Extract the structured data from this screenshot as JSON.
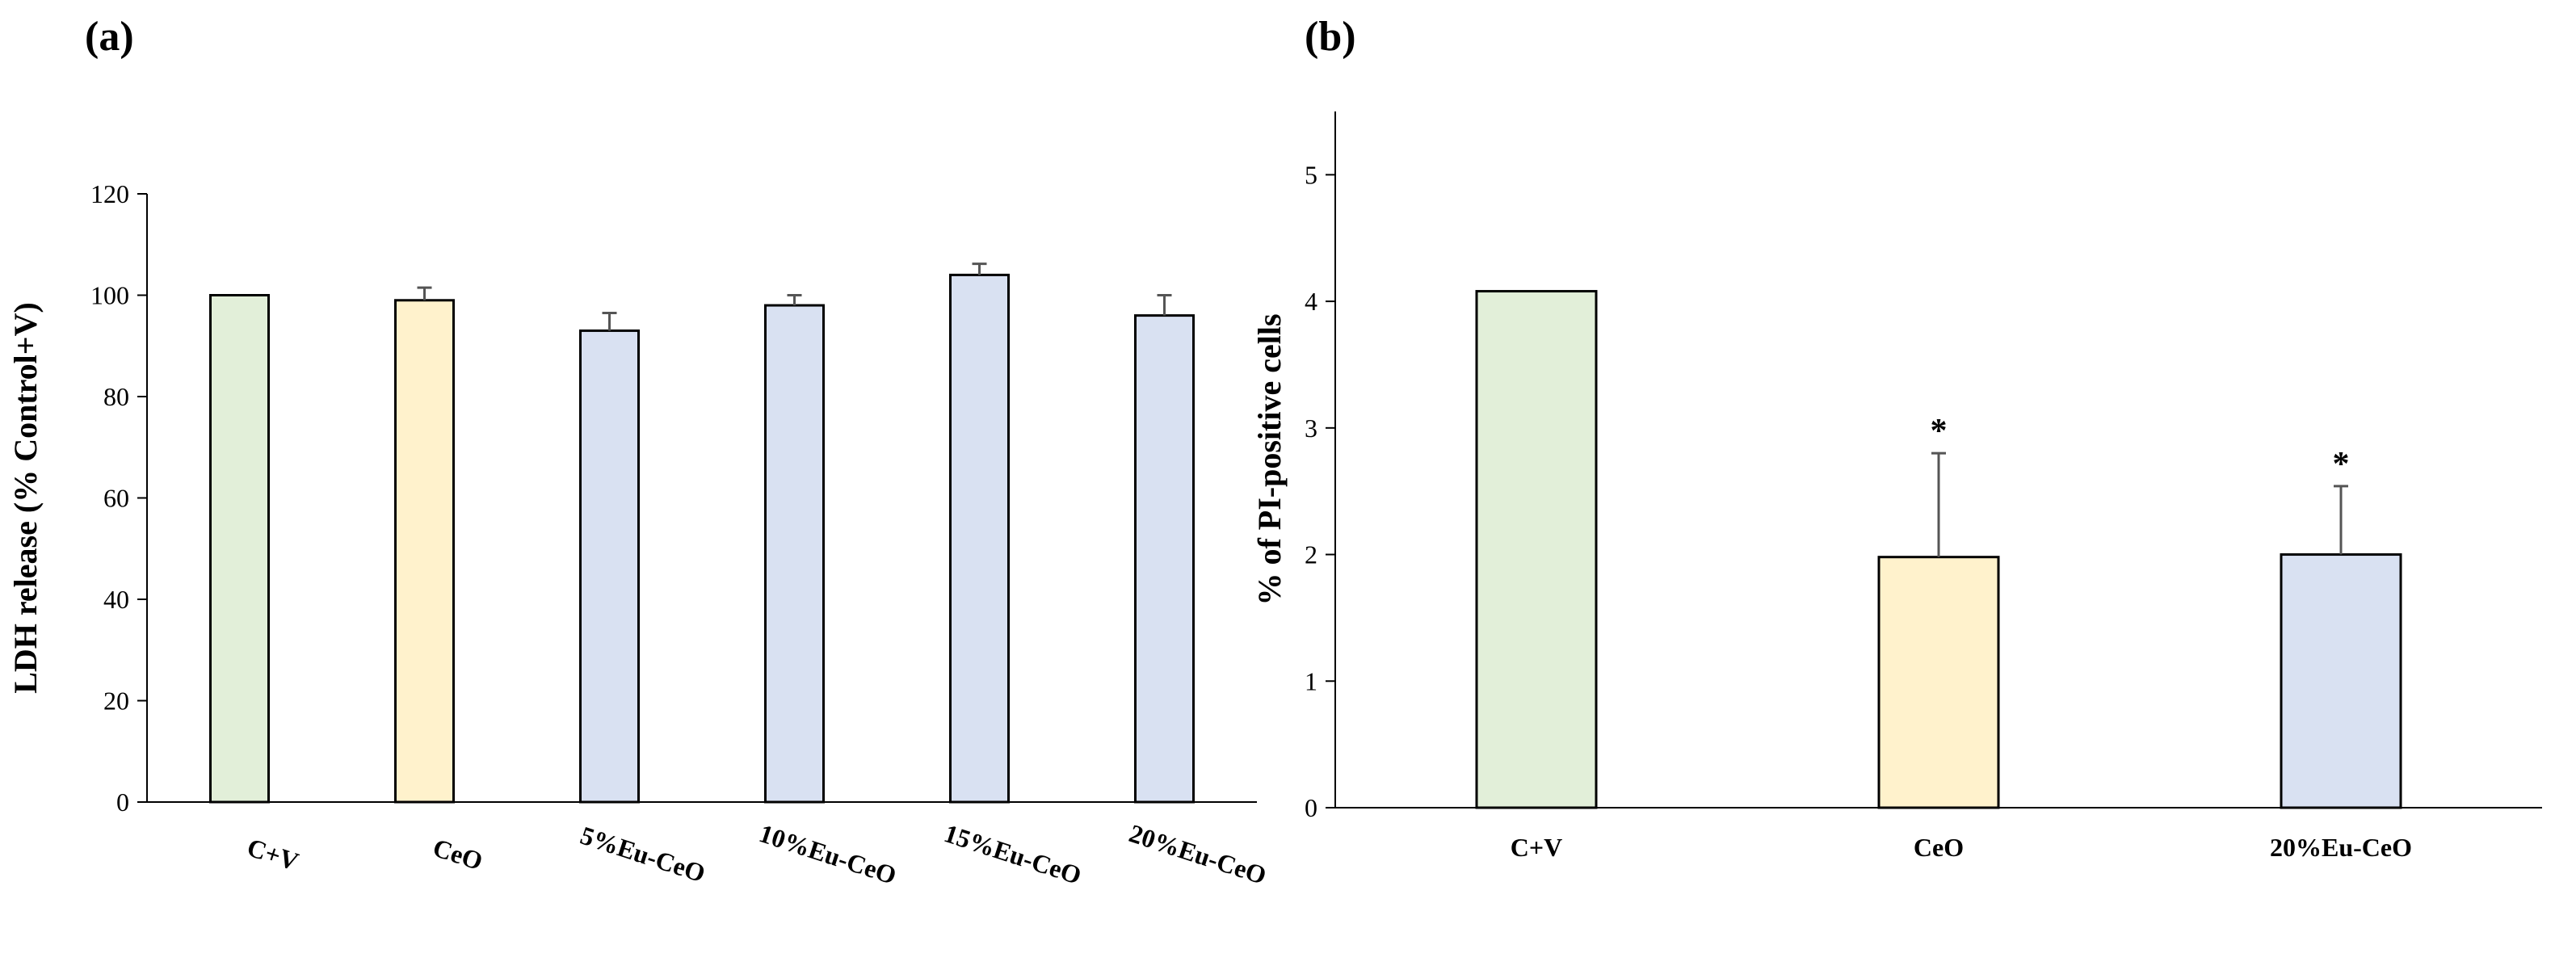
{
  "panels": {
    "a": {
      "label": "(a)"
    },
    "b": {
      "label": "(b)"
    }
  },
  "chart_data": [
    {
      "type": "bar",
      "panel": "(a)",
      "title": "",
      "xlabel": "",
      "ylabel": "LDH release (% Control+V)",
      "categories": [
        "C+V",
        "CeO",
        "5%Eu-CeO",
        "10%Eu-CeO",
        "15%Eu-CeO",
        "20%Eu-CeO"
      ],
      "values": [
        100,
        99,
        93,
        98,
        104,
        96
      ],
      "errors": [
        0,
        2.5,
        3.5,
        2,
        2.2,
        4
      ],
      "colors": [
        "#e2efd9",
        "#fff2cc",
        "#d9e1f2",
        "#d9e1f2",
        "#d9e1f2",
        "#d9e1f2"
      ],
      "annotations": [
        "",
        "",
        "",
        "",
        "",
        ""
      ],
      "ylim": [
        0,
        120
      ],
      "yticks": [
        0,
        20,
        40,
        60,
        80,
        100,
        120
      ],
      "grid": false
    },
    {
      "type": "bar",
      "panel": "(b)",
      "title": "",
      "xlabel": "",
      "ylabel": "% of PI-positive cells",
      "categories": [
        "C+V",
        "CeO",
        "20%Eu-CeO"
      ],
      "values": [
        4.08,
        1.98,
        2.0
      ],
      "errors": [
        0,
        0.82,
        0.54
      ],
      "colors": [
        "#e2efd9",
        "#fff2cc",
        "#d9e1f2"
      ],
      "annotations": [
        "",
        "*",
        "*"
      ],
      "ylim": [
        0,
        5.5
      ],
      "yticks": [
        0,
        1,
        2,
        3,
        4,
        5
      ],
      "grid": false
    }
  ]
}
